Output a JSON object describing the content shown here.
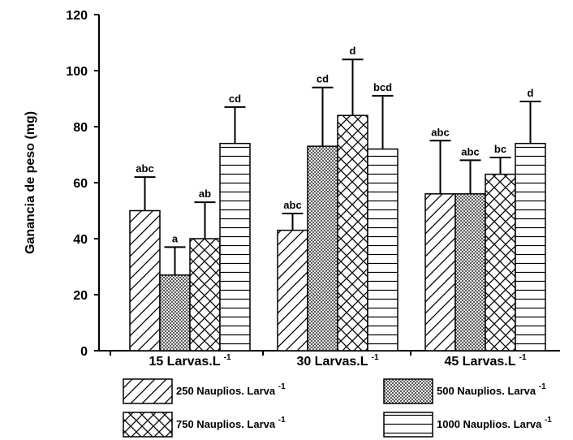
{
  "chart_data": {
    "type": "bar",
    "title": "",
    "xlabel": "",
    "ylabel": "Ganancia de peso (mg)",
    "ylim": [
      0,
      120
    ],
    "yticks": [
      0,
      20,
      40,
      60,
      80,
      100,
      120
    ],
    "grid": false,
    "legend_position": "bottom",
    "categories": [
      {
        "base": "15 Larvas.L",
        "sup": "-1"
      },
      {
        "base": "30 Larvas.L",
        "sup": "-1"
      },
      {
        "base": "45 Larvas.L",
        "sup": "-1"
      }
    ],
    "series": [
      {
        "name": "250 Nauplios. Larva",
        "sup": "-1",
        "pattern": "diagonal",
        "values": [
          50,
          43,
          56
        ],
        "errors": [
          12,
          6,
          19
        ],
        "letters": [
          "abc",
          "abc",
          "abc"
        ]
      },
      {
        "name": "500 Nauplios. Larva",
        "sup": "-1",
        "pattern": "stipple",
        "values": [
          27,
          73,
          56
        ],
        "errors": [
          10,
          21,
          12
        ],
        "letters": [
          "a",
          "cd",
          "abc"
        ]
      },
      {
        "name": "750 Nauplios. Larva",
        "sup": "-1",
        "pattern": "crosshatch",
        "values": [
          40,
          84,
          63
        ],
        "errors": [
          13,
          20,
          6
        ],
        "letters": [
          "ab",
          "d",
          "bc"
        ]
      },
      {
        "name": "1000 Nauplios. Larva",
        "sup": "-1",
        "pattern": "horizontal",
        "values": [
          74,
          72,
          74
        ],
        "errors": [
          13,
          19,
          15
        ],
        "letters": [
          "cd",
          "bcd",
          "d"
        ]
      }
    ]
  }
}
